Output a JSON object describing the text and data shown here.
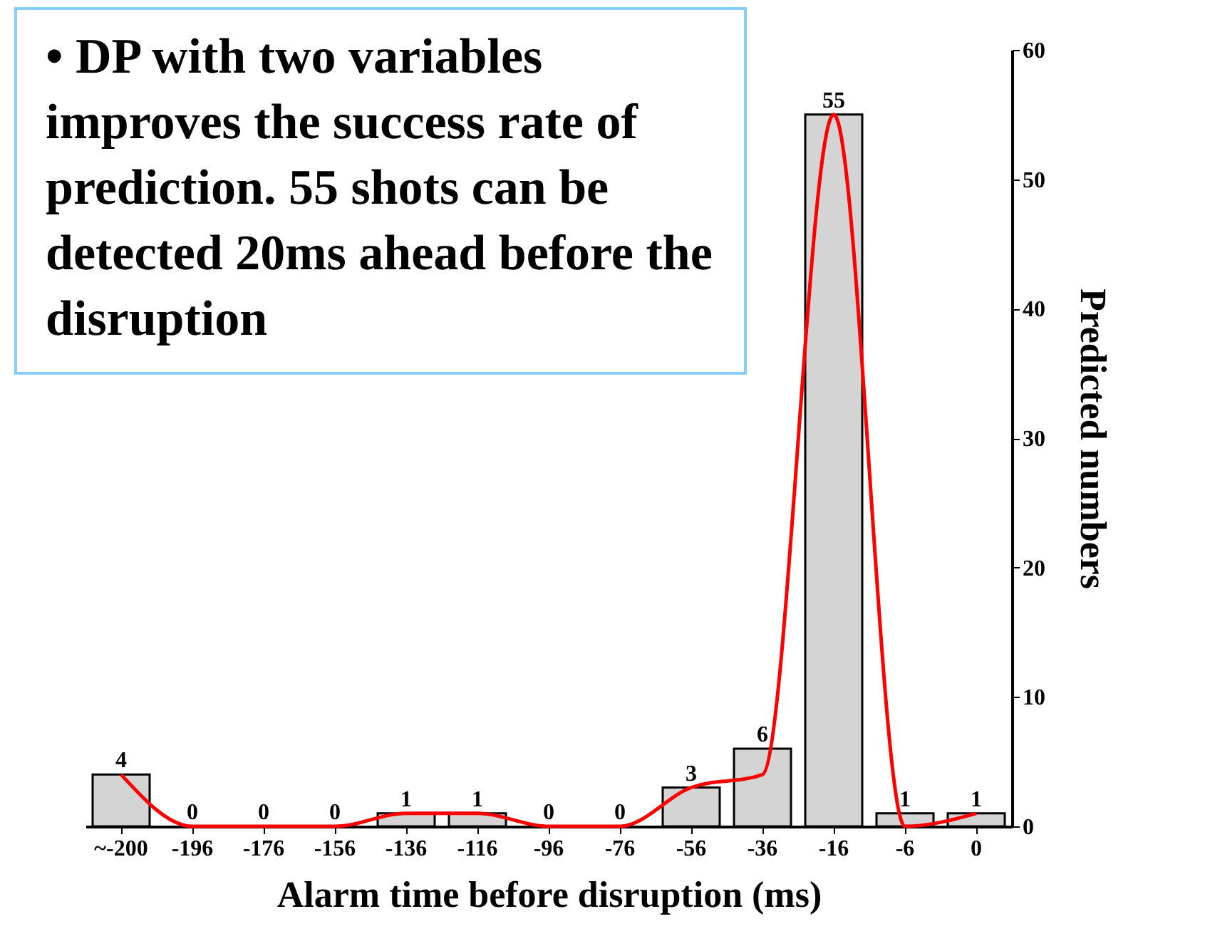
{
  "chart_data": {
    "type": "bar",
    "categories": [
      "~-200",
      "-196",
      "-176",
      "-156",
      "-136",
      "-116",
      "-96",
      "-76",
      "-56",
      "-36",
      "-16",
      "-6",
      "0"
    ],
    "series": [
      {
        "color": "#d4d4d4",
        "values": [
          4,
          0,
          0,
          0,
          1,
          1,
          0,
          0,
          3,
          6,
          55,
          1,
          1
        ],
        "value_labels": [
          "4",
          "0",
          "0",
          "0",
          "1",
          "1",
          "0",
          "0",
          "3",
          "6",
          "55",
          "1",
          "1"
        ]
      },
      {
        "type": "line",
        "color": "#ff0000",
        "values": [
          4,
          0,
          0,
          0,
          1,
          1,
          0,
          0,
          3,
          4,
          55,
          0,
          1
        ]
      }
    ],
    "xlabel": "Alarm time before disruption (ms)",
    "ylabel": "Predicted numbers",
    "ylim": [
      0,
      60
    ],
    "yticks": [
      0,
      10,
      20,
      30,
      40,
      50,
      60
    ],
    "annotations": [
      "• DP with two variables improves the success rate of prediction. 55 shots can be detected 20ms ahead before the disruption"
    ]
  }
}
